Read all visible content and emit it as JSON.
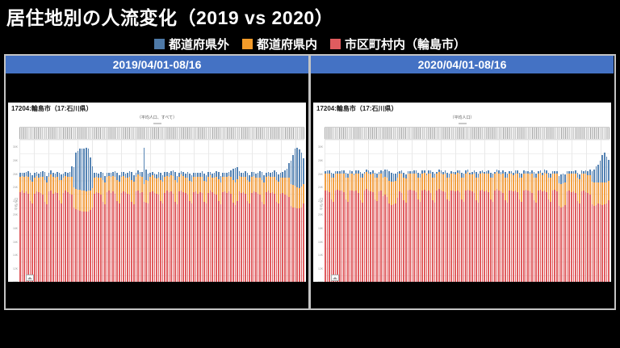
{
  "page_title": "居住地別の人流変化（2019 vs 2020）",
  "legend": {
    "items": [
      {
        "label": "都道府県外",
        "color": "#4e79a7"
      },
      {
        "label": "都道府県内",
        "color": "#f39b2a"
      },
      {
        "label": "市区町村内（輪島市）",
        "color": "#e05c5f"
      }
    ]
  },
  "panels": [
    {
      "period": "2019/04/01-08/16",
      "chart_label": "17204:輪島市（17:石川県）",
      "subtitle": "（平均人口、すべて）"
    },
    {
      "period": "2020/04/01-08/16",
      "chart_label": "17204:輪島市（17:石川県）",
      "subtitle": "（平均人口）"
    }
  ],
  "y_axis": {
    "label": "平均人口",
    "ticks": [
      "30K",
      "28K",
      "26K",
      "24K",
      "22K",
      "20K",
      "18K",
      "16K",
      "14K",
      "12K",
      "10K"
    ]
  },
  "chart_data": [
    {
      "type": "bar",
      "stacked": true,
      "title": "2019/04/01-08/16",
      "x_start": "2019/04/01",
      "x_end": "2019/08/16",
      "ylim_visible": [
        10000,
        30000
      ],
      "grid": true,
      "series": [
        {
          "name": "市区町村内（輪島市）",
          "color": "#e05c5f",
          "values": [
            23200,
            23400,
            23100,
            23300,
            23000,
            21900,
            21500,
            23000,
            23300,
            23200,
            23100,
            22900,
            21800,
            21400,
            23300,
            23500,
            23000,
            23200,
            23100,
            22000,
            21600,
            23100,
            23400,
            23200,
            23000,
            22800,
            21000,
            20700,
            20600,
            20500,
            20400,
            20400,
            20300,
            20400,
            20600,
            21000,
            23000,
            23200,
            23100,
            22900,
            21800,
            21400,
            23200,
            23400,
            23100,
            23300,
            23000,
            21900,
            21500,
            23100,
            23300,
            23200,
            23000,
            22900,
            21800,
            21400,
            23300,
            23500,
            23100,
            23200,
            21800,
            21700,
            21500,
            23200,
            23300,
            23100,
            23000,
            22900,
            21900,
            21500,
            23100,
            23400,
            23200,
            23300,
            23000,
            21800,
            21400,
            23300,
            23500,
            23200,
            23100,
            22900,
            21900,
            21600,
            23200,
            23300,
            23000,
            23200,
            23100,
            21800,
            21500,
            23100,
            23400,
            23200,
            23000,
            22900,
            21900,
            21400,
            23200,
            23300,
            23100,
            23300,
            23000,
            21700,
            21300,
            21900,
            23300,
            23100,
            23200,
            23000,
            21900,
            21500,
            23100,
            23300,
            23200,
            23000,
            22800,
            21800,
            21400,
            23200,
            23400,
            23100,
            23200,
            23000,
            21800,
            21500,
            23000,
            23100,
            22900,
            22700,
            22500,
            21200,
            21000,
            21000,
            20800,
            20800,
            21000,
            21600
          ]
        },
        {
          "name": "都道府県内",
          "color": "#f2a044",
          "values": [
            2300,
            2200,
            2400,
            2300,
            2500,
            3100,
            3300,
            2400,
            2300,
            2200,
            2400,
            2600,
            3200,
            3200,
            2200,
            2300,
            2500,
            2200,
            2400,
            3000,
            3400,
            2300,
            2200,
            2300,
            2500,
            2700,
            2900,
            3000,
            3000,
            3100,
            3000,
            3100,
            3000,
            3000,
            2900,
            2800,
            2400,
            2300,
            2300,
            2500,
            3200,
            3300,
            2300,
            2200,
            2400,
            2300,
            2500,
            3100,
            3300,
            2400,
            2300,
            2200,
            2400,
            2600,
            3200,
            3400,
            2200,
            2300,
            2500,
            2300,
            2600,
            3300,
            3400,
            2300,
            2400,
            2300,
            2200,
            2500,
            3100,
            3300,
            2400,
            2200,
            2300,
            2400,
            2600,
            3200,
            3300,
            2200,
            2300,
            2400,
            2300,
            2500,
            3000,
            3200,
            2300,
            2200,
            2500,
            2300,
            2400,
            3100,
            3300,
            2400,
            2300,
            2200,
            2400,
            2600,
            3200,
            3300,
            2300,
            2200,
            2400,
            2300,
            2500,
            3300,
            3400,
            3200,
            2300,
            2400,
            2300,
            2500,
            3100,
            3300,
            2400,
            2300,
            2200,
            2400,
            2600,
            3200,
            3300,
            2300,
            2200,
            2400,
            2300,
            2500,
            3200,
            3300,
            2400,
            2300,
            2500,
            2600,
            2800,
            3200,
            3300,
            3200,
            3100,
            3000,
            3000,
            2800
          ]
        },
        {
          "name": "都道府県外",
          "color": "#5583b3",
          "values": [
            600,
            500,
            550,
            600,
            800,
            1100,
            900,
            650,
            550,
            500,
            650,
            850,
            1150,
            950,
            550,
            600,
            600,
            550,
            750,
            1050,
            850,
            600,
            550,
            600,
            700,
            1500,
            3000,
            5300,
            5700,
            6000,
            6300,
            6200,
            6500,
            6200,
            4800,
            3200,
            700,
            600,
            600,
            800,
            1100,
            900,
            600,
            500,
            550,
            600,
            800,
            1100,
            900,
            650,
            550,
            600,
            650,
            850,
            1150,
            950,
            550,
            600,
            600,
            700,
            5400,
            1500,
            1000,
            600,
            550,
            500,
            600,
            800,
            1100,
            900,
            650,
            600,
            550,
            650,
            850,
            1150,
            950,
            550,
            500,
            600,
            600,
            750,
            1050,
            900,
            600,
            550,
            600,
            550,
            800,
            1100,
            950,
            650,
            550,
            600,
            700,
            850,
            1150,
            900,
            600,
            550,
            600,
            650,
            900,
            1700,
            2100,
            1800,
            700,
            600,
            600,
            800,
            1100,
            950,
            650,
            600,
            550,
            700,
            900,
            1200,
            1000,
            600,
            550,
            600,
            700,
            900,
            1200,
            1000,
            700,
            800,
            1000,
            1400,
            2200,
            3400,
            4400,
            5400,
            5900,
            5700,
            5000,
            3800
          ]
        }
      ]
    },
    {
      "type": "bar",
      "stacked": true,
      "title": "2020/04/01-08/16",
      "x_start": "2020/04/01",
      "x_end": "2020/08/16",
      "ylim_visible": [
        10000,
        30000
      ],
      "grid": true,
      "series": [
        {
          "name": "市区町村内（輪島市）",
          "color": "#e05c5f",
          "values": [
            23400,
            23500,
            23200,
            22100,
            21800,
            23500,
            23600,
            23400,
            23500,
            23200,
            22100,
            21800,
            23400,
            23500,
            23300,
            23400,
            23100,
            22000,
            21700,
            23500,
            23700,
            23400,
            23300,
            23200,
            22200,
            21900,
            23300,
            23400,
            22600,
            22800,
            22500,
            21500,
            21300,
            21400,
            21600,
            22400,
            23300,
            23100,
            22000,
            21700,
            23500,
            23600,
            23400,
            23500,
            23200,
            22100,
            21800,
            23400,
            23600,
            23300,
            23400,
            23100,
            22000,
            21700,
            23500,
            23700,
            23400,
            23300,
            23200,
            22200,
            21900,
            23400,
            23500,
            23300,
            23500,
            23200,
            22100,
            21800,
            23500,
            23600,
            23400,
            23300,
            23100,
            22000,
            21700,
            23400,
            23600,
            23300,
            23500,
            23200,
            22100,
            21800,
            23500,
            23700,
            23400,
            23300,
            23100,
            22000,
            21700,
            23400,
            23500,
            23300,
            23400,
            23200,
            22100,
            21800,
            23500,
            23600,
            23400,
            23300,
            23100,
            22000,
            21700,
            23400,
            23600,
            23300,
            23500,
            23200,
            22100,
            21800,
            23500,
            23600,
            23300,
            21200,
            20900,
            21100,
            21300,
            23300,
            23400,
            23200,
            23300,
            23100,
            21900,
            21600,
            23300,
            23400,
            23200,
            23100,
            22900,
            21400,
            21200,
            21300,
            21600,
            21400,
            21300,
            21400,
            21600,
            22000
          ]
        },
        {
          "name": "都道府県内",
          "color": "#f2a044",
          "values": [
            2600,
            2500,
            2700,
            3300,
            3500,
            2500,
            2400,
            2600,
            2500,
            2700,
            3300,
            3500,
            2600,
            2500,
            2400,
            2600,
            2800,
            3400,
            3600,
            2400,
            2500,
            2600,
            2500,
            2700,
            3200,
            3400,
            2500,
            2600,
            2800,
            2700,
            2900,
            3400,
            3500,
            3400,
            3300,
            2900,
            2600,
            2800,
            3400,
            3500,
            2500,
            2400,
            2600,
            2500,
            2700,
            3300,
            3500,
            2600,
            2500,
            2400,
            2600,
            2800,
            3400,
            3600,
            2400,
            2500,
            2600,
            2500,
            2700,
            3200,
            3400,
            2600,
            2400,
            2500,
            2600,
            2700,
            3300,
            3500,
            2500,
            2600,
            2400,
            2500,
            2800,
            3400,
            3600,
            2600,
            2500,
            2600,
            2400,
            2700,
            3300,
            3500,
            2400,
            2500,
            2600,
            2500,
            2800,
            3400,
            3600,
            2600,
            2500,
            2400,
            2600,
            2700,
            3300,
            3500,
            2500,
            2400,
            2600,
            2500,
            2800,
            3400,
            3600,
            2600,
            2500,
            2400,
            2600,
            2700,
            3300,
            3500,
            2500,
            2400,
            2600,
            3300,
            3500,
            3400,
            3300,
            2600,
            2500,
            2700,
            2600,
            2800,
            3400,
            3500,
            2600,
            2500,
            2700,
            2600,
            2800,
            3400,
            3500,
            3400,
            3100,
            3200,
            3300,
            3200,
            3100,
            2900
          ]
        },
        {
          "name": "都道府県外",
          "color": "#5583b3",
          "values": [
            350,
            400,
            500,
            700,
            600,
            350,
            300,
            350,
            400,
            500,
            700,
            600,
            400,
            350,
            300,
            400,
            550,
            750,
            650,
            300,
            350,
            400,
            350,
            500,
            700,
            600,
            400,
            450,
            900,
            1000,
            1100,
            1400,
            1300,
            1200,
            1100,
            900,
            400,
            500,
            700,
            600,
            350,
            300,
            350,
            400,
            500,
            700,
            600,
            400,
            350,
            300,
            450,
            550,
            750,
            650,
            300,
            350,
            400,
            350,
            500,
            700,
            600,
            350,
            300,
            400,
            350,
            500,
            700,
            600,
            400,
            350,
            300,
            400,
            550,
            750,
            650,
            350,
            300,
            350,
            400,
            500,
            700,
            600,
            300,
            350,
            400,
            350,
            550,
            750,
            650,
            350,
            300,
            350,
            400,
            500,
            700,
            600,
            400,
            350,
            300,
            400,
            550,
            750,
            650,
            350,
            300,
            350,
            400,
            500,
            700,
            600,
            350,
            300,
            400,
            1100,
            1400,
            1500,
            1200,
            400,
            450,
            400,
            450,
            550,
            800,
            700,
            500,
            450,
            500,
            600,
            900,
            1500,
            1900,
            2300,
            2600,
            3300,
            4100,
            4500,
            3700,
            3100
          ]
        }
      ]
    }
  ]
}
